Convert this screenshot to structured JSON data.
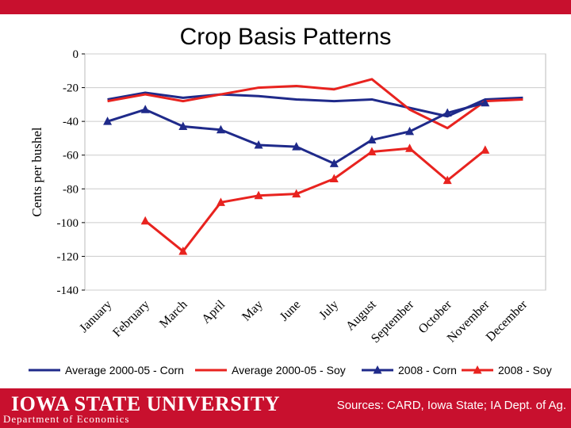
{
  "slide": {
    "title": "Crop Basis Patterns",
    "university": "IOWA STATE UNIVERSITY",
    "department": "Department of Economics",
    "sources": "Sources: CARD, Iowa State; IA Dept. of Ag."
  },
  "colors": {
    "navy": "#1f2a8a",
    "red": "#e8231f",
    "brand": "#c8102e",
    "grid": "#cccccc"
  },
  "chart_data": {
    "type": "line",
    "title": "Crop Basis Patterns",
    "xlabel": "",
    "ylabel": "Cents per bushel",
    "ylim": [
      -140,
      0
    ],
    "yticks": [
      0,
      -20,
      -40,
      -60,
      -80,
      -100,
      -120,
      -140
    ],
    "grid": true,
    "legend_position": "bottom",
    "categories": [
      "January",
      "February",
      "March",
      "April",
      "May",
      "June",
      "July",
      "August",
      "September",
      "October",
      "November",
      "December"
    ],
    "series": [
      {
        "name": "Average 2000-05 - Corn",
        "color": "#1f2a8a",
        "marker": "none",
        "values": [
          -27,
          -23,
          -26,
          -24,
          -25,
          -27,
          -28,
          -27,
          -32,
          -37,
          -27,
          -26
        ]
      },
      {
        "name": "Average 2000-05 - Soy",
        "color": "#e8231f",
        "marker": "none",
        "values": [
          -28,
          -24,
          -28,
          -24,
          -20,
          -19,
          -21,
          -15,
          -33,
          -44,
          -28,
          -27
        ]
      },
      {
        "name": "2008 - Corn",
        "color": "#1f2a8a",
        "marker": "triangle",
        "values": [
          -40,
          -33,
          -43,
          -45,
          -54,
          -55,
          -65,
          -51,
          -46,
          -35,
          -29,
          null
        ]
      },
      {
        "name": "2008 - Soy",
        "color": "#e8231f",
        "marker": "triangle",
        "values": [
          null,
          -99,
          -117,
          -88,
          -84,
          -83,
          -74,
          -58,
          -56,
          -75,
          -57,
          null
        ]
      }
    ]
  }
}
